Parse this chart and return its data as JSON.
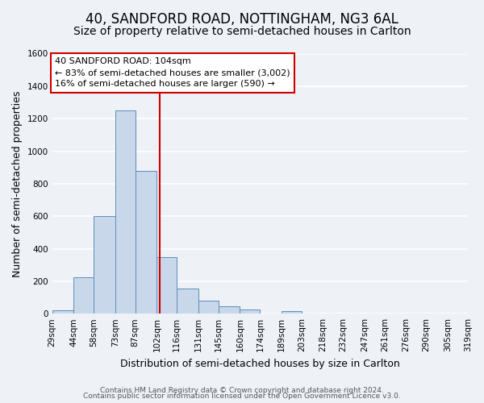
{
  "title": "40, SANDFORD ROAD, NOTTINGHAM, NG3 6AL",
  "subtitle": "Size of property relative to semi-detached houses in Carlton",
  "xlabel": "Distribution of semi-detached houses by size in Carlton",
  "ylabel": "Number of semi-detached properties",
  "bar_values": [
    20,
    225,
    600,
    1250,
    880,
    350,
    155,
    80,
    45,
    25,
    0,
    15,
    0,
    0,
    0,
    0,
    0,
    0,
    0,
    0
  ],
  "bin_edges": [
    29,
    44,
    58,
    73,
    87,
    102,
    116,
    131,
    145,
    160,
    174,
    189,
    203,
    218,
    232,
    247,
    261,
    276,
    290,
    305,
    319
  ],
  "bin_labels": [
    "29sqm",
    "44sqm",
    "58sqm",
    "73sqm",
    "87sqm",
    "102sqm",
    "116sqm",
    "131sqm",
    "145sqm",
    "160sqm",
    "174sqm",
    "189sqm",
    "203sqm",
    "218sqm",
    "232sqm",
    "247sqm",
    "261sqm",
    "276sqm",
    "290sqm",
    "305sqm",
    "319sqm"
  ],
  "property_value": 104,
  "bar_color": "#c8d8ea",
  "bar_edge_color": "#5b8db8",
  "vline_color": "#cc0000",
  "annotation_line1": "40 SANDFORD ROAD: 104sqm",
  "annotation_line2": "← 83% of semi-detached houses are smaller (3,002)",
  "annotation_line3": "16% of semi-detached houses are larger (590) →",
  "annotation_box_facecolor": "#ffffff",
  "annotation_box_edgecolor": "#cc0000",
  "ylim": [
    0,
    1600
  ],
  "yticks": [
    0,
    200,
    400,
    600,
    800,
    1000,
    1200,
    1400,
    1600
  ],
  "footer1": "Contains HM Land Registry data © Crown copyright and database right 2024.",
  "footer2": "Contains public sector information licensed under the Open Government Licence v3.0.",
  "background_color": "#eef2f7",
  "grid_color": "#ffffff",
  "title_fontsize": 12,
  "subtitle_fontsize": 10,
  "axis_label_fontsize": 9,
  "tick_fontsize": 7.5,
  "footer_fontsize": 6.5,
  "annotation_fontsize": 8
}
